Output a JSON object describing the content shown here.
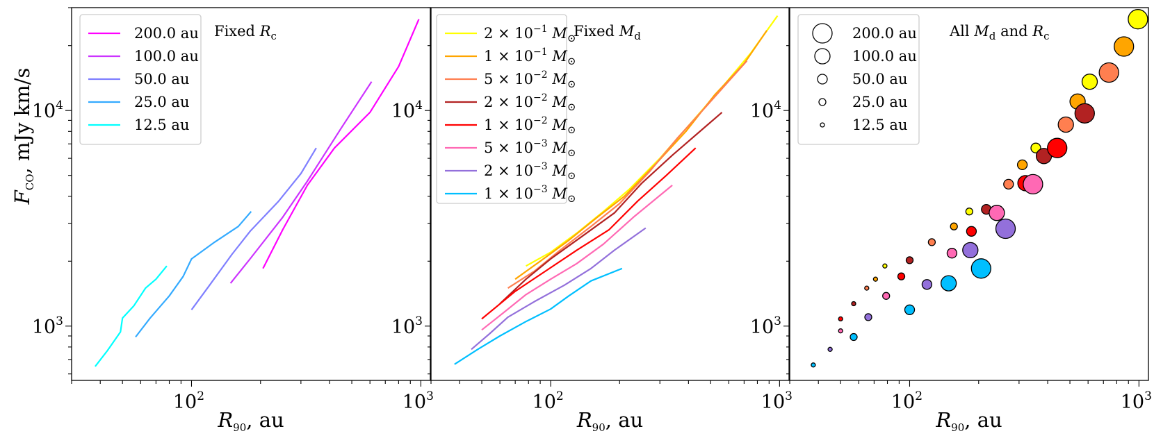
{
  "figure": {
    "ylabel": "F_CO, mJy km/s",
    "ylabel_main": "F",
    "ylabel_sub": "CO",
    "ylabel_rest": ", mJy km/s",
    "xlabel_main": "R",
    "xlabel_sub": "90",
    "xlabel_rest": ", au",
    "tick_base": "10",
    "xtick_exps": [
      "2",
      "3"
    ],
    "ytick_exps": [
      "3",
      "4"
    ]
  },
  "chart_data": [
    {
      "type": "line",
      "title": "Fixed R_c",
      "title_main": "Fixed ",
      "title_var": "R",
      "title_sub": "c",
      "xscale": "log",
      "yscale": "log",
      "xlim": [
        30,
        1100
      ],
      "ylim": [
        560,
        30000
      ],
      "xlabel": "R_90, au",
      "ylabel": "F_CO, mJy km/s",
      "legend_position": "top-left",
      "series": [
        {
          "name": "200.0 au",
          "color": "#ff00ff",
          "x": [
            205,
            250,
            320,
            420,
            600,
            800,
            980
          ],
          "y": [
            1850,
            2800,
            4500,
            6700,
            9800,
            16000,
            26500
          ]
        },
        {
          "name": "100.0 au",
          "color": "#cc33ff",
          "x": [
            148,
            180,
            250,
            320,
            450,
            610
          ],
          "y": [
            1580,
            2050,
            3200,
            4700,
            8300,
            13600
          ]
        },
        {
          "name": "50.0 au",
          "color": "#7f7fff",
          "x": [
            100,
            120,
            150,
            180,
            240,
            300,
            350
          ],
          "y": [
            1190,
            1550,
            2150,
            2750,
            3800,
            5100,
            6700
          ]
        },
        {
          "name": "25.0 au",
          "color": "#33aaff",
          "x": [
            57,
            66,
            80,
            92,
            100,
            126,
            160,
            182
          ],
          "y": [
            890,
            1090,
            1380,
            1700,
            2050,
            2450,
            2900,
            3400
          ]
        },
        {
          "name": "12.5 au",
          "color": "#00ffff",
          "x": [
            38,
            43,
            49,
            50,
            56,
            63,
            70,
            78
          ],
          "y": [
            650,
            770,
            940,
            1090,
            1240,
            1500,
            1650,
            1900
          ]
        }
      ]
    },
    {
      "type": "line",
      "title": "Fixed M_d",
      "title_main": "Fixed ",
      "title_var": "M",
      "title_sub": "d",
      "xscale": "log",
      "yscale": "log",
      "xlim": [
        30,
        1100
      ],
      "ylim": [
        560,
        30000
      ],
      "xlabel": "R_90, au",
      "ylabel": "",
      "legend_position": "top-left",
      "series": [
        {
          "name": "2 × 10^-1 M_⊙",
          "mant": "2",
          "exp": "−1",
          "color": "#ffff00",
          "x": [
            78,
            100,
            130,
            170,
            220,
            300,
            400,
            550,
            750,
            980
          ],
          "y": [
            1900,
            2200,
            2700,
            3400,
            4300,
            6000,
            8500,
            12500,
            18500,
            27500
          ]
        },
        {
          "name": "1 × 10^-1 M_⊙",
          "mant": "1",
          "exp": "−1",
          "color": "#ffa500",
          "x": [
            70,
            90,
            120,
            160,
            210,
            290,
            390,
            520,
            700,
            880
          ],
          "y": [
            1650,
            2000,
            2500,
            3200,
            4000,
            5700,
            8000,
            11800,
            16500,
            23500
          ]
        },
        {
          "name": "5 × 10^-2 M_⊙",
          "mant": "5",
          "exp": "−2",
          "color": "#ff7f50",
          "x": [
            65,
            85,
            110,
            150,
            200,
            270,
            360,
            480,
            720
          ],
          "y": [
            1500,
            1800,
            2250,
            2900,
            3700,
            5200,
            7500,
            10500,
            17000
          ]
        },
        {
          "name": "2 × 10^-2 M_⊙",
          "mant": "2",
          "exp": "−2",
          "color": "#b22222",
          "x": [
            60,
            78,
            100,
            140,
            190,
            250,
            340,
            560
          ],
          "y": [
            1270,
            1650,
            2050,
            2650,
            3350,
            4600,
            6200,
            9800
          ]
        },
        {
          "name": "1 × 10^-2 M_⊙",
          "mant": "1",
          "exp": "−2",
          "color": "#ff0000",
          "x": [
            50,
            70,
            95,
            130,
            180,
            240,
            320,
            430
          ],
          "y": [
            1080,
            1450,
            1800,
            2250,
            2800,
            3800,
            5000,
            6700
          ]
        },
        {
          "name": "5 × 10^-3 M_⊙",
          "mant": "5",
          "exp": "−3",
          "color": "#ff69b4",
          "x": [
            50,
            62,
            78,
            100,
            130,
            170,
            230,
            340
          ],
          "y": [
            960,
            1150,
            1400,
            1650,
            1950,
            2400,
            3200,
            4500
          ]
        },
        {
          "name": "2 × 10^-3 M_⊙",
          "mant": "2",
          "exp": "−3",
          "color": "#9370db",
          "x": [
            45,
            54,
            65,
            85,
            115,
            150,
            190,
            260
          ],
          "y": [
            780,
            920,
            1100,
            1300,
            1550,
            1850,
            2250,
            2850
          ]
        },
        {
          "name": "1 × 10^-3 M_⊙",
          "mant": "1",
          "exp": "−3",
          "color": "#00bfff",
          "x": [
            38,
            48,
            60,
            78,
            100,
            120,
            150,
            205
          ],
          "y": [
            665,
            780,
            900,
            1050,
            1200,
            1380,
            1620,
            1850
          ]
        }
      ]
    },
    {
      "type": "scatter",
      "title": "All M_d and R_c",
      "title_main": "All ",
      "title_var1": "M",
      "title_sub1": "d",
      "title_mid": " and ",
      "title_var2": "R",
      "title_sub2": "c",
      "xscale": "log",
      "yscale": "log",
      "xlim": [
        30,
        1100
      ],
      "ylim": [
        560,
        30000
      ],
      "xlabel": "R_90, au",
      "ylabel": "",
      "legend_position": "top-left",
      "size_legend": [
        {
          "label": "200.0 au",
          "size": 5
        },
        {
          "label": "100.0 au",
          "size": 4
        },
        {
          "label": "50.0 au",
          "size": 3
        },
        {
          "label": "25.0 au",
          "size": 2
        },
        {
          "label": "12.5 au",
          "size": 1
        }
      ],
      "points": [
        {
          "x": 38,
          "y": 660,
          "size": 1,
          "color": "#00bfff"
        },
        {
          "x": 45,
          "y": 780,
          "size": 1,
          "color": "#9370db"
        },
        {
          "x": 50,
          "y": 950,
          "size": 1,
          "color": "#ff69b4"
        },
        {
          "x": 50,
          "y": 1080,
          "size": 1,
          "color": "#ff0000"
        },
        {
          "x": 57,
          "y": 1270,
          "size": 1,
          "color": "#b22222"
        },
        {
          "x": 65,
          "y": 1500,
          "size": 1,
          "color": "#ff7f50"
        },
        {
          "x": 71,
          "y": 1650,
          "size": 1,
          "color": "#ffa500"
        },
        {
          "x": 78,
          "y": 1900,
          "size": 1,
          "color": "#ffff00"
        },
        {
          "x": 57,
          "y": 890,
          "size": 2,
          "color": "#00bfff"
        },
        {
          "x": 66,
          "y": 1100,
          "size": 2,
          "color": "#9370db"
        },
        {
          "x": 79,
          "y": 1380,
          "size": 2,
          "color": "#ff69b4"
        },
        {
          "x": 92,
          "y": 1700,
          "size": 2,
          "color": "#ff0000"
        },
        {
          "x": 100,
          "y": 2020,
          "size": 2,
          "color": "#b22222"
        },
        {
          "x": 125,
          "y": 2450,
          "size": 2,
          "color": "#ff7f50"
        },
        {
          "x": 156,
          "y": 2900,
          "size": 2,
          "color": "#ffa500"
        },
        {
          "x": 182,
          "y": 3400,
          "size": 2,
          "color": "#ffff00"
        },
        {
          "x": 100,
          "y": 1190,
          "size": 3,
          "color": "#00bfff"
        },
        {
          "x": 119,
          "y": 1560,
          "size": 3,
          "color": "#9370db"
        },
        {
          "x": 153,
          "y": 2180,
          "size": 3,
          "color": "#ff69b4"
        },
        {
          "x": 186,
          "y": 2750,
          "size": 3,
          "color": "#ff0000"
        },
        {
          "x": 216,
          "y": 3480,
          "size": 3,
          "color": "#b22222"
        },
        {
          "x": 270,
          "y": 4550,
          "size": 3,
          "color": "#ff7f50"
        },
        {
          "x": 310,
          "y": 5600,
          "size": 3,
          "color": "#ffa500"
        },
        {
          "x": 355,
          "y": 6700,
          "size": 3,
          "color": "#ffff00"
        },
        {
          "x": 148,
          "y": 1580,
          "size": 4,
          "color": "#00bfff"
        },
        {
          "x": 184,
          "y": 2250,
          "size": 4,
          "color": "#9370db"
        },
        {
          "x": 240,
          "y": 3350,
          "size": 4,
          "color": "#ff69b4"
        },
        {
          "x": 320,
          "y": 4600,
          "size": 4,
          "color": "#ff0000"
        },
        {
          "x": 385,
          "y": 6150,
          "size": 4,
          "color": "#b22222"
        },
        {
          "x": 480,
          "y": 8600,
          "size": 4,
          "color": "#ff7f50"
        },
        {
          "x": 540,
          "y": 11000,
          "size": 4,
          "color": "#ffa500"
        },
        {
          "x": 610,
          "y": 13600,
          "size": 4,
          "color": "#ffff00"
        },
        {
          "x": 205,
          "y": 1850,
          "size": 5,
          "color": "#00bfff"
        },
        {
          "x": 262,
          "y": 2830,
          "size": 5,
          "color": "#9370db"
        },
        {
          "x": 345,
          "y": 4550,
          "size": 5,
          "color": "#ff69b4"
        },
        {
          "x": 440,
          "y": 6700,
          "size": 5,
          "color": "#ff0000"
        },
        {
          "x": 580,
          "y": 9700,
          "size": 5,
          "color": "#b22222"
        },
        {
          "x": 740,
          "y": 15000,
          "size": 5,
          "color": "#ff7f50"
        },
        {
          "x": 860,
          "y": 19800,
          "size": 5,
          "color": "#ffa500"
        },
        {
          "x": 990,
          "y": 26500,
          "size": 5,
          "color": "#ffff00"
        }
      ]
    }
  ]
}
